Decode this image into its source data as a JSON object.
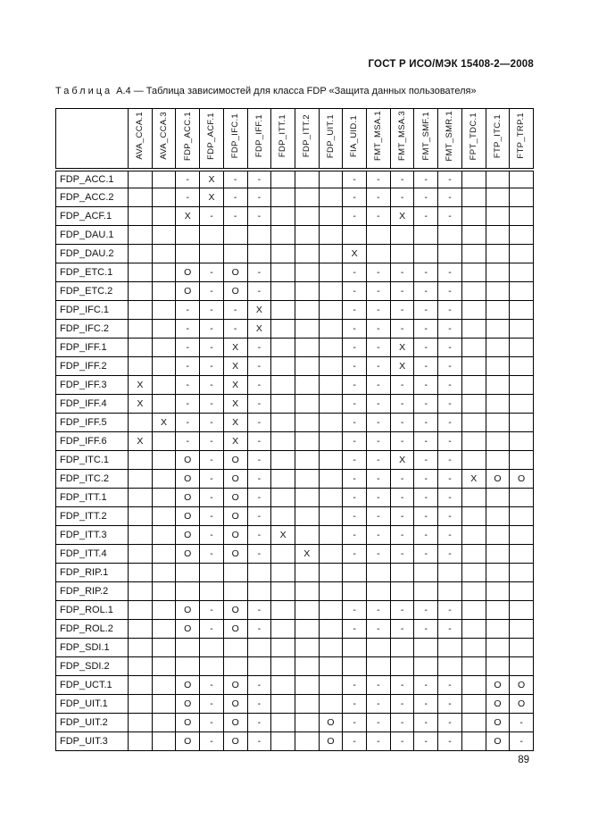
{
  "page": {
    "header": "ГОСТ Р ИСО/МЭК 15408-2—2008",
    "page_number": "89"
  },
  "caption": {
    "label": "Таблица",
    "rest": "А.4 — Таблица зависимостей для класса FDP «Защита данных пользователя»"
  },
  "table": {
    "columns": [
      "AVA_CCA.1",
      "AVA_CCA.3",
      "FDP_ACC.1",
      "FDP_ACF.1",
      "FDP_IFC.1",
      "FDP_IFF.1",
      "FDP_ITT.1",
      "FDP_ITT.2",
      "FDP_UIT.1",
      "FIA_UID.1",
      "FMT_MSA.1",
      "FMT_MSA.3",
      "FMT_SMF.1",
      "FMT_SMR.1",
      "FPT_TDC.1",
      "FTP_ITC.1",
      "FTP_TRP.1"
    ],
    "rows": [
      {
        "label": "FDP_ACC.1",
        "cells": [
          "",
          "",
          "-",
          "X",
          "-",
          "-",
          "",
          "",
          "",
          "-",
          "-",
          "-",
          "-",
          "-",
          "",
          "",
          ""
        ]
      },
      {
        "label": "FDP_ACC.2",
        "cells": [
          "",
          "",
          "-",
          "X",
          "-",
          "-",
          "",
          "",
          "",
          "-",
          "-",
          "-",
          "-",
          "-",
          "",
          "",
          ""
        ]
      },
      {
        "label": "FDP_ACF.1",
        "cells": [
          "",
          "",
          "X",
          "-",
          "-",
          "-",
          "",
          "",
          "",
          "-",
          "-",
          "X",
          "-",
          "-",
          "",
          "",
          ""
        ]
      },
      {
        "label": "FDP_DAU.1",
        "cells": [
          "",
          "",
          "",
          "",
          "",
          "",
          "",
          "",
          "",
          "",
          "",
          "",
          "",
          "",
          "",
          "",
          ""
        ]
      },
      {
        "label": "FDP_DAU.2",
        "cells": [
          "",
          "",
          "",
          "",
          "",
          "",
          "",
          "",
          "",
          "X",
          "",
          "",
          "",
          "",
          "",
          "",
          ""
        ]
      },
      {
        "label": "FDP_ETC.1",
        "cells": [
          "",
          "",
          "O",
          "-",
          "O",
          "-",
          "",
          "",
          "",
          "-",
          "-",
          "-",
          "-",
          "-",
          "",
          "",
          ""
        ]
      },
      {
        "label": "FDP_ETC.2",
        "cells": [
          "",
          "",
          "O",
          "-",
          "O",
          "-",
          "",
          "",
          "",
          "-",
          "-",
          "-",
          "-",
          "-",
          "",
          "",
          ""
        ]
      },
      {
        "label": "FDP_IFC.1",
        "cells": [
          "",
          "",
          "-",
          "-",
          "-",
          "X",
          "",
          "",
          "",
          "-",
          "-",
          "-",
          "-",
          "-",
          "",
          "",
          ""
        ]
      },
      {
        "label": "FDP_IFC.2",
        "cells": [
          "",
          "",
          "-",
          "-",
          "-",
          "X",
          "",
          "",
          "",
          "-",
          "-",
          "-",
          "-",
          "-",
          "",
          "",
          ""
        ]
      },
      {
        "label": "FDP_IFF.1",
        "cells": [
          "",
          "",
          "-",
          "-",
          "X",
          "-",
          "",
          "",
          "",
          "-",
          "-",
          "X",
          "-",
          "-",
          "",
          "",
          ""
        ]
      },
      {
        "label": "FDP_IFF.2",
        "cells": [
          "",
          "",
          "-",
          "-",
          "X",
          "-",
          "",
          "",
          "",
          "-",
          "-",
          "X",
          "-",
          "-",
          "",
          "",
          ""
        ]
      },
      {
        "label": "FDP_IFF.3",
        "cells": [
          "X",
          "",
          "-",
          "-",
          "X",
          "-",
          "",
          "",
          "",
          "-",
          "-",
          "-",
          "-",
          "-",
          "",
          "",
          ""
        ]
      },
      {
        "label": "FDP_IFF.4",
        "cells": [
          "X",
          "",
          "-",
          "-",
          "X",
          "-",
          "",
          "",
          "",
          "-",
          "-",
          "-",
          "-",
          "-",
          "",
          "",
          ""
        ]
      },
      {
        "label": "FDP_IFF.5",
        "cells": [
          "",
          "X",
          "-",
          "-",
          "X",
          "-",
          "",
          "",
          "",
          "-",
          "-",
          "-",
          "-",
          "-",
          "",
          "",
          ""
        ]
      },
      {
        "label": "FDP_IFF.6",
        "cells": [
          "X",
          "",
          "-",
          "-",
          "X",
          "-",
          "",
          "",
          "",
          "-",
          "-",
          "-",
          "-",
          "-",
          "",
          "",
          ""
        ]
      },
      {
        "label": "FDP_ITC.1",
        "cells": [
          "",
          "",
          "O",
          "-",
          "O",
          "-",
          "",
          "",
          "",
          "-",
          "-",
          "X",
          "-",
          "-",
          "",
          "",
          ""
        ]
      },
      {
        "label": "FDP_ITC.2",
        "cells": [
          "",
          "",
          "O",
          "-",
          "O",
          "-",
          "",
          "",
          "",
          "-",
          "-",
          "-",
          "-",
          "-",
          "X",
          "O",
          "O"
        ]
      },
      {
        "label": "FDP_ITT.1",
        "cells": [
          "",
          "",
          "O",
          "-",
          "O",
          "-",
          "",
          "",
          "",
          "-",
          "-",
          "-",
          "-",
          "-",
          "",
          "",
          ""
        ]
      },
      {
        "label": "FDP_ITT.2",
        "cells": [
          "",
          "",
          "O",
          "-",
          "O",
          "-",
          "",
          "",
          "",
          "-",
          "-",
          "-",
          "-",
          "-",
          "",
          "",
          ""
        ]
      },
      {
        "label": "FDP_ITT.3",
        "cells": [
          "",
          "",
          "O",
          "-",
          "O",
          "-",
          "X",
          "",
          "",
          "-",
          "-",
          "-",
          "-",
          "-",
          "",
          "",
          ""
        ]
      },
      {
        "label": "FDP_ITT.4",
        "cells": [
          "",
          "",
          "O",
          "-",
          "O",
          "-",
          "",
          "X",
          "",
          "-",
          "-",
          "-",
          "-",
          "-",
          "",
          "",
          ""
        ]
      },
      {
        "label": "FDP_RIP.1",
        "cells": [
          "",
          "",
          "",
          "",
          "",
          "",
          "",
          "",
          "",
          "",
          "",
          "",
          "",
          "",
          "",
          "",
          ""
        ]
      },
      {
        "label": "FDP_RIP.2",
        "cells": [
          "",
          "",
          "",
          "",
          "",
          "",
          "",
          "",
          "",
          "",
          "",
          "",
          "",
          "",
          "",
          "",
          ""
        ]
      },
      {
        "label": "FDP_ROL.1",
        "cells": [
          "",
          "",
          "O",
          "-",
          "O",
          "-",
          "",
          "",
          "",
          "-",
          "-",
          "-",
          "-",
          "-",
          "",
          "",
          ""
        ]
      },
      {
        "label": "FDP_ROL.2",
        "cells": [
          "",
          "",
          "O",
          "-",
          "O",
          "-",
          "",
          "",
          "",
          "-",
          "-",
          "-",
          "-",
          "-",
          "",
          "",
          ""
        ]
      },
      {
        "label": "FDP_SDI.1",
        "cells": [
          "",
          "",
          "",
          "",
          "",
          "",
          "",
          "",
          "",
          "",
          "",
          "",
          "",
          "",
          "",
          "",
          ""
        ]
      },
      {
        "label": "FDP_SDI.2",
        "cells": [
          "",
          "",
          "",
          "",
          "",
          "",
          "",
          "",
          "",
          "",
          "",
          "",
          "",
          "",
          "",
          "",
          ""
        ]
      },
      {
        "label": "FDP_UCT.1",
        "cells": [
          "",
          "",
          "O",
          "-",
          "O",
          "-",
          "",
          "",
          "",
          "-",
          "-",
          "-",
          "-",
          "-",
          "",
          "O",
          "O"
        ]
      },
      {
        "label": "FDP_UIT.1",
        "cells": [
          "",
          "",
          "O",
          "-",
          "O",
          "-",
          "",
          "",
          "",
          "-",
          "-",
          "-",
          "-",
          "-",
          "",
          "O",
          "O"
        ]
      },
      {
        "label": "FDP_UIT.2",
        "cells": [
          "",
          "",
          "O",
          "-",
          "O",
          "-",
          "",
          "",
          "O",
          "-",
          "-",
          "-",
          "-",
          "-",
          "",
          "O",
          "-"
        ]
      },
      {
        "label": "FDP_UIT.3",
        "cells": [
          "",
          "",
          "O",
          "-",
          "O",
          "-",
          "",
          "",
          "O",
          "-",
          "-",
          "-",
          "-",
          "-",
          "",
          "O",
          "-"
        ]
      }
    ]
  }
}
